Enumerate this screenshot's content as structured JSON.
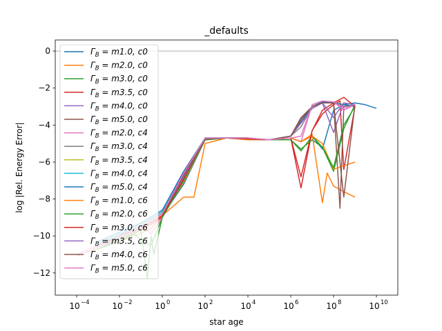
{
  "chart_data": {
    "type": "line",
    "title": "_defaults",
    "xlabel": "star age",
    "ylabel": "log |Rel. Energy Error|",
    "x_scale": "log",
    "xlim": [
      1e-05,
      100000000000
    ],
    "ylim": [
      -13.2,
      0.6
    ],
    "x_ticks": [
      {
        "value": 0.0001,
        "label": "10",
        "exp": "−4"
      },
      {
        "value": 0.01,
        "label": "10",
        "exp": "−2"
      },
      {
        "value": 1,
        "label": "10",
        "exp": "0"
      },
      {
        "value": 100,
        "label": "10",
        "exp": "2"
      },
      {
        "value": 10000,
        "label": "10",
        "exp": "4"
      },
      {
        "value": 1000000,
        "label": "10",
        "exp": "6"
      },
      {
        "value": 100000000,
        "label": "10",
        "exp": "8"
      },
      {
        "value": 10000000000,
        "label": "10",
        "exp": "10"
      }
    ],
    "y_ticks": [
      {
        "value": 0,
        "label": "0"
      },
      {
        "value": -2,
        "label": "−2"
      },
      {
        "value": -4,
        "label": "−4"
      },
      {
        "value": -6,
        "label": "−6"
      },
      {
        "value": -8,
        "label": "−8"
      },
      {
        "value": -10,
        "label": "−10"
      },
      {
        "value": -12,
        "label": "−12"
      }
    ],
    "reference_line": {
      "y": 0,
      "color": "#a0a0a0"
    },
    "grid": false,
    "legend_position": "upper-left",
    "series": [
      {
        "name": "m1.0, c0",
        "color": "#1f77b4",
        "x": [
          0.001,
          0.01,
          0.1,
          1,
          10,
          100,
          1000,
          10000,
          100000,
          1000000,
          3000000,
          10000000,
          30000000,
          100000000,
          300000000,
          1000000000,
          3000000000,
          10000000000
        ],
        "y": [
          -10.6,
          -10.1,
          -9.6,
          -8.9,
          -7.2,
          -4.8,
          -4.7,
          -4.75,
          -4.8,
          -4.7,
          -4.9,
          -4.6,
          -5.3,
          -3.2,
          -2.9,
          -2.8,
          -2.9,
          -3.1
        ]
      },
      {
        "name": "m2.0, c0",
        "color": "#ff7f0e",
        "x": [
          0.0003,
          0.003,
          0.03,
          0.3,
          1,
          10,
          30,
          100,
          1000,
          10000,
          100000,
          1000000,
          3000000,
          10000000,
          30000000,
          50000000,
          100000000,
          300000000,
          1000000000
        ],
        "y": [
          -10.9,
          -10.5,
          -10.1,
          -9.6,
          -8.9,
          -7.9,
          -7.9,
          -5.0,
          -4.7,
          -4.8,
          -4.8,
          -4.7,
          -4.9,
          -4.5,
          -8.2,
          -6.6,
          -7.3,
          -7.6,
          -7.9
        ]
      },
      {
        "name": "m3.0, c0",
        "color": "#2ca02c",
        "x": [
          0.001,
          0.01,
          0.05,
          0.1,
          0.3,
          1,
          10,
          100,
          1000,
          10000,
          100000,
          1000000,
          3000000,
          10000000,
          30000000,
          100000000,
          300000000,
          1000000000
        ],
        "y": [
          -10.7,
          -10.3,
          -9.9,
          -10.2,
          -10.5,
          -9.0,
          -7.0,
          -4.8,
          -4.7,
          -4.75,
          -4.8,
          -4.8,
          -5.4,
          -4.6,
          -5.2,
          -6.5,
          -4.2,
          -2.9
        ]
      },
      {
        "name": "m3.5, c0",
        "color": "#d62728",
        "x": [
          0.001,
          0.01,
          0.1,
          1,
          10,
          100,
          1000,
          10000,
          100000,
          1000000,
          3000000,
          10000000,
          30000000,
          100000000,
          200000000,
          300000000,
          1000000000
        ],
        "y": [
          -10.6,
          -10.2,
          -9.7,
          -9.0,
          -7.0,
          -4.8,
          -4.7,
          -4.75,
          -4.8,
          -4.7,
          -7.4,
          -4.3,
          -3.4,
          -2.9,
          -2.7,
          -6.4,
          -3.0
        ]
      },
      {
        "name": "m4.0, c0",
        "color": "#9467bd",
        "x": [
          0.001,
          0.01,
          0.1,
          1,
          10,
          100,
          1000,
          10000,
          100000,
          1000000,
          3000000,
          10000000,
          30000000,
          100000000,
          300000000,
          1000000000
        ],
        "y": [
          -10.5,
          -10.1,
          -9.6,
          -8.9,
          -6.8,
          -4.75,
          -4.7,
          -4.7,
          -4.8,
          -4.6,
          -3.8,
          -3.1,
          -2.8,
          -4.4,
          -2.8,
          -2.9
        ]
      },
      {
        "name": "m5.0, c0",
        "color": "#8c564b",
        "x": [
          0.001,
          0.01,
          0.1,
          1,
          10,
          100,
          1000,
          10000,
          100000,
          1000000,
          3000000,
          10000000,
          30000000,
          100000000,
          200000000,
          300000000,
          1000000000
        ],
        "y": [
          -10.5,
          -10.0,
          -9.5,
          -8.8,
          -6.7,
          -4.75,
          -4.7,
          -4.7,
          -4.8,
          -4.6,
          -3.6,
          -3.0,
          -2.8,
          -2.8,
          -8.5,
          -3.0,
          -2.9
        ]
      },
      {
        "name": "m2.0, c4",
        "color": "#e377c2",
        "x": [
          0.0001,
          0.001,
          0.01,
          0.1,
          0.3,
          1,
          10,
          100,
          1000,
          10000,
          100000,
          1000000,
          3000000,
          10000000,
          30000000,
          100000000,
          300000000,
          1000000000
        ],
        "y": [
          -11.0,
          -10.5,
          -10.0,
          -9.3,
          -9.9,
          -9.0,
          -6.8,
          -4.7,
          -4.7,
          -4.7,
          -4.8,
          -4.7,
          -4.9,
          -2.9,
          -2.7,
          -2.75,
          -3.2,
          -2.9
        ]
      },
      {
        "name": "m3.0, c4",
        "color": "#7f7f7f",
        "x": [
          0.001,
          0.01,
          0.1,
          1,
          10,
          100,
          1000,
          10000,
          100000,
          1000000,
          3000000,
          10000000,
          30000000,
          100000000,
          300000000,
          1000000000
        ],
        "y": [
          -10.4,
          -9.9,
          -9.4,
          -8.7,
          -6.6,
          -4.7,
          -4.7,
          -4.7,
          -4.8,
          -4.6,
          -4.1,
          -3.0,
          -2.75,
          -2.8,
          -2.9,
          -3.0
        ]
      },
      {
        "name": "m3.5, c4",
        "color": "#bcbd22",
        "x": [
          0.001,
          0.01,
          0.1,
          1,
          10,
          100,
          1000,
          10000,
          100000,
          1000000,
          10000000,
          30000000,
          100000000,
          300000000,
          1000000000
        ],
        "y": [
          -10.4,
          -9.9,
          -9.4,
          -8.7,
          -6.6,
          -4.7,
          -4.7,
          -4.7,
          -4.8,
          -4.6,
          -3.0,
          -2.75,
          -2.8,
          -2.9,
          -3.0
        ]
      },
      {
        "name": "m4.0, c4",
        "color": "#17becf",
        "x": [
          0.001,
          0.01,
          0.1,
          1,
          10,
          100,
          1000,
          10000,
          100000,
          1000000,
          10000000,
          30000000,
          100000000,
          300000000,
          1000000000
        ],
        "y": [
          -10.4,
          -9.9,
          -9.4,
          -8.7,
          -6.6,
          -4.7,
          -4.7,
          -4.7,
          -4.8,
          -4.6,
          -3.0,
          -2.75,
          -2.8,
          -2.9,
          -3.0
        ]
      },
      {
        "name": "m5.0, c4",
        "color": "#1f77b4",
        "x": [
          0.001,
          0.01,
          0.1,
          1,
          10,
          100,
          1000,
          10000,
          100000,
          1000000,
          10000000,
          30000000,
          100000000,
          300000000,
          1000000000
        ],
        "y": [
          -10.3,
          -9.8,
          -9.3,
          -8.6,
          -6.5,
          -4.7,
          -4.7,
          -4.7,
          -4.8,
          -4.6,
          -3.0,
          -2.75,
          -2.8,
          -2.9,
          -3.0
        ]
      },
      {
        "name": "m1.0, c6",
        "color": "#ff7f0e",
        "x": [
          0.001,
          0.01,
          0.1,
          1,
          10,
          100,
          1000,
          10000,
          100000,
          1000000,
          3000000,
          10000000,
          30000000,
          100000000,
          300000000,
          1000000000
        ],
        "y": [
          -10.6,
          -10.1,
          -9.6,
          -8.9,
          -7.1,
          -4.8,
          -4.7,
          -4.75,
          -4.8,
          -4.7,
          -4.9,
          -4.6,
          -5.0,
          -6.4,
          -6.2,
          -6.0
        ]
      },
      {
        "name": "m2.0, c6",
        "color": "#2ca02c",
        "x": [
          0.001,
          0.01,
          0.1,
          0.2,
          0.3,
          0.4,
          1,
          10,
          100,
          1000,
          10000,
          100000,
          1000000,
          3000000,
          10000000,
          30000000,
          100000000,
          300000000,
          1000000000
        ],
        "y": [
          -10.7,
          -10.2,
          -9.7,
          -12.3,
          -10.0,
          -11.0,
          -9.0,
          -7.0,
          -4.8,
          -4.7,
          -4.75,
          -4.8,
          -4.8,
          -5.3,
          -4.8,
          -5.2,
          -6.3,
          -4.0,
          -3.0
        ]
      },
      {
        "name": "m3.0, c6",
        "color": "#d62728",
        "x": [
          0.001,
          0.01,
          0.1,
          1,
          10,
          100,
          1000,
          10000,
          100000,
          1000000,
          3000000,
          10000000,
          30000000,
          100000000,
          300000000,
          1000000000
        ],
        "y": [
          -10.6,
          -10.1,
          -9.6,
          -8.9,
          -6.9,
          -4.75,
          -4.7,
          -4.75,
          -4.8,
          -4.7,
          -6.8,
          -4.3,
          -3.2,
          -2.8,
          -2.5,
          -3.0
        ]
      },
      {
        "name": "m3.5, c6",
        "color": "#9467bd",
        "x": [
          0.001,
          0.01,
          0.1,
          1,
          10,
          100,
          1000,
          10000,
          100000,
          1000000,
          3000000,
          10000000,
          30000000,
          100000000,
          300000000,
          1000000000
        ],
        "y": [
          -10.5,
          -10.0,
          -9.5,
          -8.8,
          -6.8,
          -4.75,
          -4.7,
          -4.7,
          -4.8,
          -4.6,
          -3.9,
          -3.1,
          -2.8,
          -3.6,
          -2.8,
          -2.9
        ]
      },
      {
        "name": "m4.0, c6",
        "color": "#8c564b",
        "x": [
          0.001,
          0.01,
          0.1,
          1,
          10,
          100,
          1000,
          10000,
          100000,
          1000000,
          3000000,
          10000000,
          30000000,
          100000000,
          300000000,
          1000000000
        ],
        "y": [
          -10.5,
          -10.0,
          -9.5,
          -8.8,
          -6.7,
          -4.75,
          -4.7,
          -4.7,
          -4.8,
          -4.6,
          -3.7,
          -3.0,
          -2.8,
          -2.8,
          -7.9,
          -2.9
        ]
      },
      {
        "name": "m5.0, c6",
        "color": "#e377c2",
        "x": [
          0.0001,
          0.001,
          0.01,
          0.1,
          1,
          10,
          100,
          1000,
          10000,
          100000,
          1000000,
          3000000,
          10000000,
          30000000,
          100000000,
          300000000,
          1000000000
        ],
        "y": [
          -11.1,
          -10.6,
          -10.1,
          -9.5,
          -8.8,
          -6.6,
          -4.7,
          -4.7,
          -4.7,
          -4.8,
          -4.7,
          -4.6,
          -2.9,
          -2.7,
          -2.75,
          -3.1,
          -2.9
        ]
      }
    ]
  },
  "legend": {
    "symbol": "Γ",
    "subscript": "B",
    "equals": " = "
  }
}
